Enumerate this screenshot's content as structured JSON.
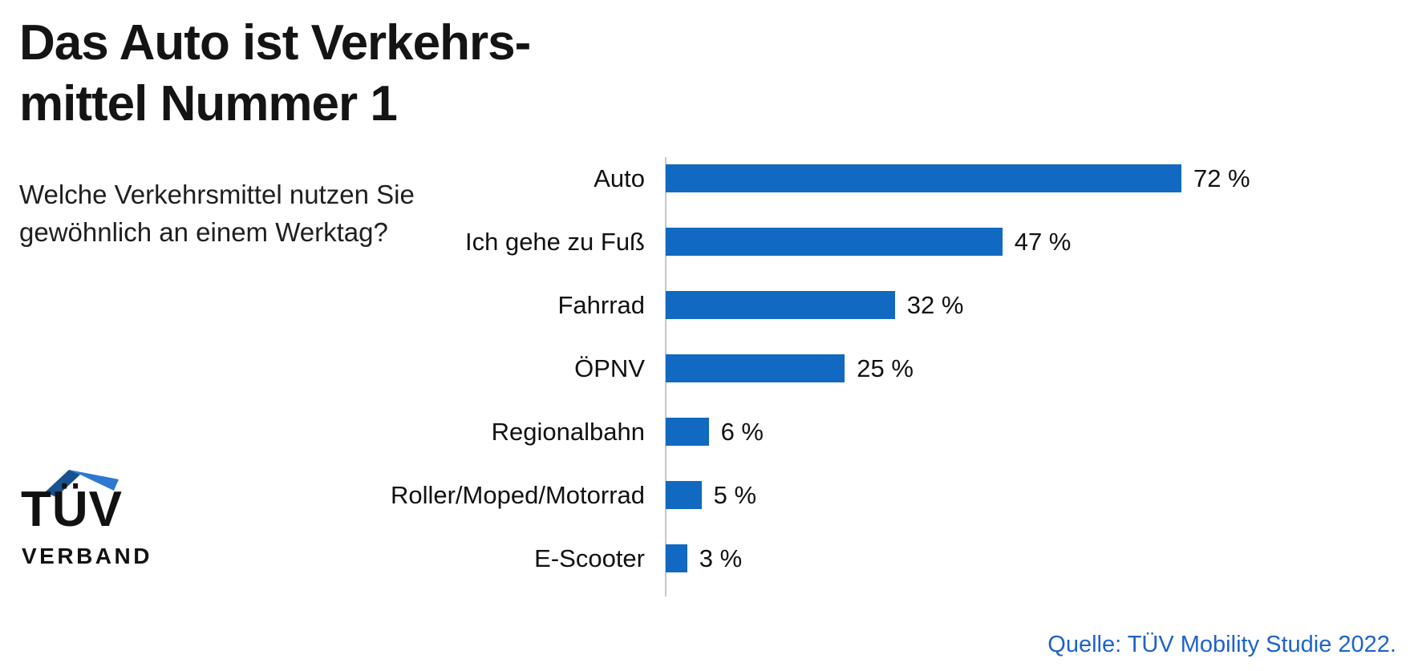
{
  "title": "Das Auto ist Verkehrs-\nmittel Nummer 1",
  "subtitle": "Welche Verkehrsmittel nutzen Sie\ngewöhnlich an einem Werktag?",
  "source": "Quelle: TÜV Mobility Studie 2022.",
  "logo": {
    "line1": "TÜV",
    "line2": "VERBAND"
  },
  "colors": {
    "bar": "#1169c1",
    "axis": "#c8c8c8",
    "source_text": "#1e63c8",
    "logo_roof_left": "#17518f",
    "logo_roof_right": "#2d79d2"
  },
  "chart_data": {
    "type": "bar",
    "orientation": "horizontal",
    "title": "Das Auto ist Verkehrsmittel Nummer 1",
    "question": "Welche Verkehrsmittel nutzen Sie gewöhnlich an einem Werktag?",
    "categories": [
      "Auto",
      "Ich gehe zu Fuß",
      "Fahrrad",
      "ÖPNV",
      "Regionalbahn",
      "Roller/Moped/Motorrad",
      "E-Scooter"
    ],
    "values": [
      72,
      47,
      32,
      25,
      6,
      5,
      3
    ],
    "value_suffix": " %",
    "xlim": [
      0,
      80
    ],
    "grid": false,
    "legend": "none"
  }
}
